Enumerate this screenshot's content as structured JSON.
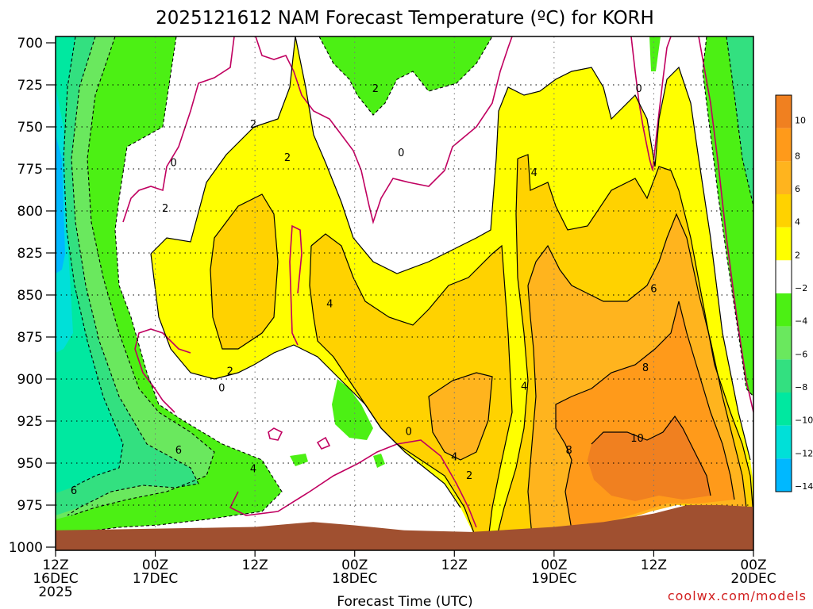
{
  "chart_data": {
    "type": "heatmap",
    "title": "2025121612 NAM Forecast Temperature (ºC) for KORH",
    "xlabel": "Forecast Time (UTC)",
    "ylabel": "",
    "credit": "coolwx.com/models",
    "y_axis": {
      "quantity": "pressure (hPa)",
      "range": [
        1000,
        700
      ],
      "ticks": [
        700,
        725,
        750,
        775,
        800,
        825,
        850,
        875,
        900,
        925,
        950,
        975,
        1000
      ]
    },
    "x_axis": {
      "range_hours": [
        0,
        84
      ],
      "ticks": [
        {
          "hour": 0,
          "line1": "12Z",
          "line2": "16DEC",
          "line3": "2025"
        },
        {
          "hour": 12,
          "line1": "00Z",
          "line2": "17DEC",
          "line3": ""
        },
        {
          "hour": 24,
          "line1": "12Z",
          "line2": "",
          "line3": ""
        },
        {
          "hour": 36,
          "line1": "00Z",
          "line2": "18DEC",
          "line3": ""
        },
        {
          "hour": 48,
          "line1": "12Z",
          "line2": "",
          "line3": ""
        },
        {
          "hour": 60,
          "line1": "00Z",
          "line2": "19DEC",
          "line3": ""
        },
        {
          "hour": 72,
          "line1": "12Z",
          "line2": "",
          "line3": ""
        },
        {
          "hour": 84,
          "line1": "00Z",
          "line2": "20DEC",
          "line3": ""
        }
      ]
    },
    "colorbar": {
      "labels": [
        "10",
        "8",
        "6",
        "4",
        "2",
        "−2",
        "−4",
        "−6",
        "−8",
        "−10",
        "−12",
        "−14"
      ],
      "colors": [
        "#f08020",
        "#ff9a1a",
        "#ffb41e",
        "#ffd200",
        "#ffff00",
        "#ffffff",
        "#4cf014",
        "#6ae85e",
        "#33e080",
        "#00e8a0",
        "#00e0d8",
        "#00b8ff"
      ]
    },
    "fill_colors": {
      "pos2": "#ffff00",
      "pos4": "#ffd200",
      "pos6": "#ffb41e",
      "pos8": "#ff9a1a",
      "pos10": "#f08020",
      "neg2": "#4cf014",
      "neg4": "#6ae85e",
      "neg6": "#33e080",
      "neg8": "#00e8a0",
      "neg12": "#00e0d8",
      "ground": "#a05030",
      "zero_line": "#c00060",
      "contour": "#000000"
    },
    "ground_surface_hpa": [
      [
        0,
        990
      ],
      [
        24,
        988
      ],
      [
        31,
        985
      ],
      [
        36,
        987
      ],
      [
        42,
        990
      ],
      [
        50,
        991
      ],
      [
        60,
        988
      ],
      [
        66,
        985
      ],
      [
        72,
        980
      ],
      [
        76,
        975
      ],
      [
        80,
        975
      ],
      [
        84,
        976
      ]
    ],
    "contour_labels": [
      {
        "text": "2",
        "hour": 38.5,
        "hpa": 727
      },
      {
        "text": "2",
        "hour": 23.8,
        "hpa": 748
      },
      {
        "text": "0",
        "hour": 14.2,
        "hpa": 771
      },
      {
        "text": "2",
        "hour": 27.9,
        "hpa": 768
      },
      {
        "text": "0",
        "hour": 41.6,
        "hpa": 765
      },
      {
        "text": "4",
        "hour": 57.6,
        "hpa": 777
      },
      {
        "text": "0",
        "hour": 70.2,
        "hpa": 727
      },
      {
        "text": "2",
        "hour": 13.2,
        "hpa": 798
      },
      {
        "text": "4",
        "hour": 33.0,
        "hpa": 855
      },
      {
        "text": "6",
        "hour": 72.0,
        "hpa": 846
      },
      {
        "text": "8",
        "hour": 71.0,
        "hpa": 893
      },
      {
        "text": "10",
        "hour": 70.0,
        "hpa": 935
      },
      {
        "text": "2",
        "hour": 21.0,
        "hpa": 895
      },
      {
        "text": "0",
        "hour": 20.0,
        "hpa": 905
      },
      {
        "text": "0",
        "hour": 42.5,
        "hpa": 931
      },
      {
        "text": "4",
        "hour": 48.0,
        "hpa": 946
      },
      {
        "text": "2",
        "hour": 49.8,
        "hpa": 957
      },
      {
        "text": "4",
        "hour": 56.4,
        "hpa": 904
      },
      {
        "text": "8",
        "hour": 61.8,
        "hpa": 942
      },
      {
        "text": "6",
        "hour": 14.8,
        "hpa": 942
      },
      {
        "text": "4",
        "hour": 23.8,
        "hpa": 953
      },
      {
        "text": "6",
        "hour": 2.2,
        "hpa": 966
      }
    ]
  }
}
